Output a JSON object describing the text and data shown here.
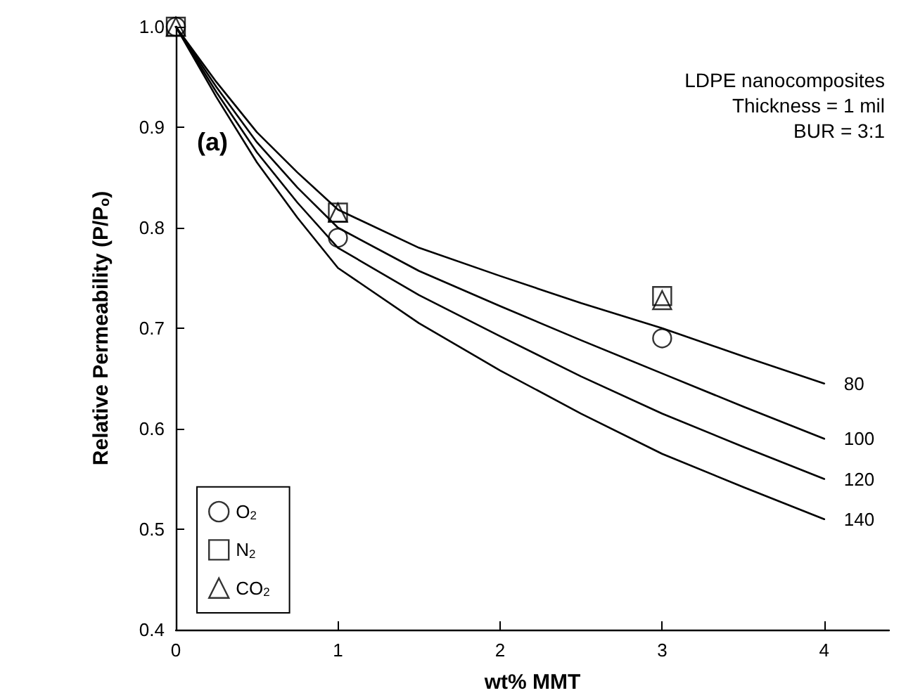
{
  "chart_data": {
    "type": "scatter",
    "xlabel": "wt% MMT",
    "ylabel": "Relative Permeability (P/P$_{o}$)",
    "xlim": [
      0,
      4.4
    ],
    "xticks": [
      0,
      1,
      2,
      3,
      4
    ],
    "ylim": [
      0.4,
      1.0
    ],
    "yticks": [
      0.4,
      0.5,
      0.6,
      0.7,
      0.8,
      0.9,
      {
        "value": 1,
        "label": "1.0"
      }
    ],
    "grid": false,
    "legend": "bottom left",
    "annotations": [
      "(a)",
      "LDPE nanocomposites",
      "Thickness = 1 mil",
      "BUR = 3:1"
    ],
    "series": [
      {
        "name": "O$_{2}$",
        "marker": "circle",
        "color": "#000000",
        "x": [
          0,
          1,
          3
        ],
        "values": [
          1.0,
          0.79,
          0.69
        ]
      },
      {
        "name": "N$_{2}$",
        "marker": "square",
        "color": "#000000",
        "x": [
          0,
          1,
          3
        ],
        "values": [
          1.0,
          0.815,
          0.732
        ]
      },
      {
        "name": "CO$_{2}$",
        "marker": "triangle",
        "color": "#000000",
        "x": [
          0,
          1,
          3
        ],
        "values": [
          1.0,
          0.815,
          0.728
        ]
      },
      {
        "name": "80",
        "type": "line",
        "marker": "none",
        "line_style": "solid",
        "color": "#000000",
        "x": [
          0,
          0.25,
          0.5,
          0.75,
          1,
          1.5,
          2,
          2.5,
          3,
          3.5,
          4
        ],
        "values": [
          1,
          0.945,
          0.895,
          0.855,
          0.818,
          0.78,
          0.752,
          0.725,
          0.7,
          0.672,
          0.645
        ]
      },
      {
        "name": "100",
        "type": "line",
        "marker": "none",
        "line_style": "solid",
        "color": "#000000",
        "x": [
          0,
          0.25,
          0.5,
          0.75,
          1,
          1.5,
          2,
          2.5,
          3,
          3.5,
          4
        ],
        "values": [
          1,
          0.94,
          0.885,
          0.84,
          0.8,
          0.757,
          0.722,
          0.688,
          0.655,
          0.622,
          0.59
        ]
      },
      {
        "name": "120",
        "type": "line",
        "marker": "none",
        "line_style": "solid",
        "color": "#000000",
        "x": [
          0,
          0.25,
          0.5,
          0.75,
          1,
          1.5,
          2,
          2.5,
          3,
          3.5,
          4
        ],
        "values": [
          1,
          0.935,
          0.875,
          0.825,
          0.78,
          0.733,
          0.692,
          0.652,
          0.615,
          0.582,
          0.55
        ]
      },
      {
        "name": "140",
        "type": "line",
        "marker": "none",
        "line_style": "solid",
        "color": "#000000",
        "x": [
          0,
          0.25,
          0.5,
          0.75,
          1,
          1.5,
          2,
          2.5,
          3,
          3.5,
          4
        ],
        "values": [
          1,
          0.93,
          0.865,
          0.81,
          0.76,
          0.705,
          0.658,
          0.615,
          0.575,
          0.542,
          0.51
        ]
      }
    ]
  }
}
